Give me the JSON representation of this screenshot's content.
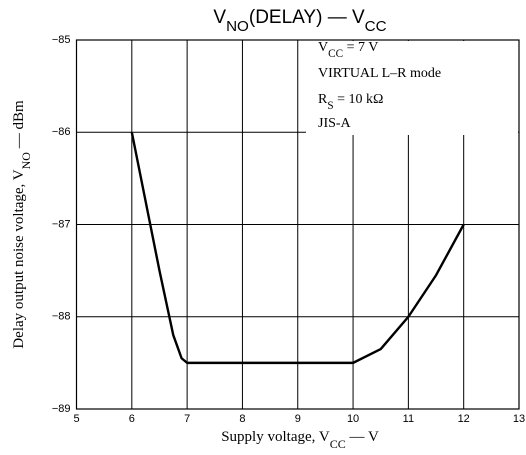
{
  "chart_data": {
    "type": "line",
    "title": [
      "V",
      "NO",
      "(DELAY)  —  V",
      "CC"
    ],
    "x_label": [
      "Supply voltage, V",
      "CC",
      " — V"
    ],
    "y_label": [
      "Delay output noise voltage, V",
      "NO",
      " — dBm"
    ],
    "annotations": [
      [
        "V",
        "CC",
        " = 7 V"
      ],
      [
        "VIRTUAL  L–R mode"
      ],
      [
        "R",
        "S",
        " = 10 kΩ"
      ],
      [
        "JIS-A"
      ]
    ],
    "x": [
      6,
      6.25,
      6.5,
      6.75,
      6.9,
      7,
      8,
      9,
      10,
      10.5,
      11,
      11.5,
      12
    ],
    "series": [
      {
        "color": "#000000",
        "values": [
          -86,
          -86.75,
          -87.5,
          -88.2,
          -88.45,
          -88.5,
          -88.5,
          -88.5,
          -88.5,
          -88.35,
          -88,
          -87.55,
          -87
        ]
      }
    ],
    "xlim": [
      5,
      13
    ],
    "ylim": [
      -89,
      -85
    ],
    "xticks": [
      5,
      6,
      7,
      8,
      9,
      10,
      11,
      12,
      13
    ],
    "yticks": [
      {
        "value": -89,
        "label": "−89"
      },
      {
        "value": -88,
        "label": "−88"
      },
      {
        "value": -87,
        "label": "−87"
      },
      {
        "value": -86,
        "label": "−86"
      },
      {
        "value": -85,
        "label": "−85"
      }
    ],
    "grid": true
  }
}
